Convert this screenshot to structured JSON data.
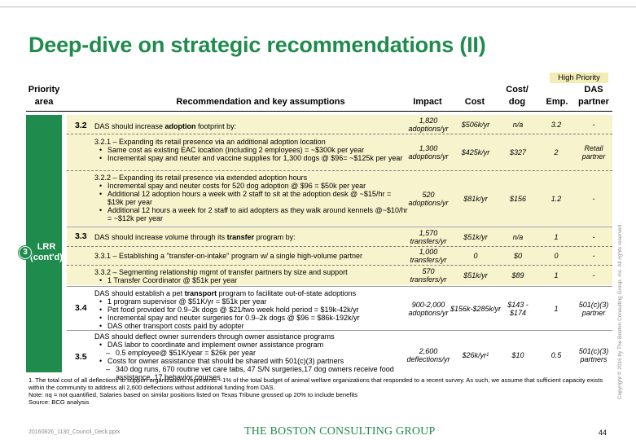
{
  "slide": {
    "title": "Deep-dive on strategic recommendations (II)",
    "high_priority_label": "High Priority",
    "page_number": "44",
    "file_name": "20160826_1130_Council_Deck.pptx",
    "logo": "THE BOSTON CONSULTING GROUP",
    "copyright": "Copyright © 2016 by The Boston Consulting Group, Inc. All rights reserved."
  },
  "headers": {
    "priority_area": "Priority area",
    "recommendation": "Recommendation and key assumptions",
    "impact": "Impact",
    "cost": "Cost",
    "cost_dog": "Cost/ dog",
    "emp": "Emp.",
    "das_partner": "DAS partner"
  },
  "priority_area": {
    "badge": "3",
    "label_line1": "LRR",
    "label_line2": "(cont'd)"
  },
  "rows": {
    "r32": {
      "num": "3.2",
      "text_pre": "DAS should increase ",
      "text_kw": "adoption",
      "text_post": " footprint by:",
      "impact": "1,820 adoptions/yr",
      "cost": "$506k/yr",
      "cost_dog": "n/a",
      "emp": "3.2",
      "partner": "-"
    },
    "r321": {
      "title": "3.2.1 – Expanding its retail presence via an additional adoption location",
      "bullets": [
        "Same cost as existing EAC location (including 2 employees) = ~$300k per year",
        "Incremental spay and neuter and vaccine supplies for 1,300 dogs @ $96= ~$125k per year"
      ],
      "impact": "1,300 adoptions/yr",
      "cost": "$425k/yr",
      "cost_dog": "$327",
      "emp": "2",
      "partner": "Retail partner"
    },
    "r322": {
      "title": "3.2.2 – Expanding its retail presence via extended adoption hours",
      "bullets": [
        "Incremental spay and neuter costs for 520 dog adoption @ $96 = $50k per year",
        "Additional 12 adoption hours a week with 2 staff to sit at the adoption desk @ ~$15/hr = $19k per year",
        "Additional 12 hours a week for 2 staff to aid adopters as they walk around kennels @~$10/hr = ~$12k per year"
      ],
      "impact": "520 adoptions/yr",
      "cost": "$81k/yr",
      "cost_dog": "$156",
      "emp": "1.2",
      "partner": "-"
    },
    "r33": {
      "num": "3.3",
      "text_pre": "DAS should increase volume through its ",
      "text_kw": "transfer",
      "text_post": " program by:",
      "impact": "1,570 transfers/yr",
      "cost": "$51k/yr",
      "cost_dog": "n/a",
      "emp": "1",
      "partner": "-"
    },
    "r331": {
      "title": "3.3.1 – Establishing a \"transfer-on-intake\" program w/ a single high-volume partner",
      "impact": "1,000 transfers/yr",
      "cost": "0",
      "cost_dog": "$0",
      "emp": "0",
      "partner": "-"
    },
    "r332": {
      "title": "3.3.2 – Segmenting relationship mgmt of transfer partners by size and support",
      "bullets": [
        "1 Transfer Coordinator @ $51k per year"
      ],
      "impact": "570 transfers/yr",
      "cost": "$51k/yr",
      "cost_dog": "$89",
      "emp": "1",
      "partner": "-"
    },
    "r34": {
      "num": "3.4",
      "text_pre": "DAS should establish a pet ",
      "text_kw": "transport",
      "text_post": " program to facilitate out-of-state adoptions",
      "bullets": [
        "1 program supervisor @ $51K/yr = $51k per year",
        "Pet food provided for 0.9–2k dogs @ $21/two week hold period = $19k-42k/yr",
        "Incremental spay and neuter surgeries for 0.9–2k dogs @ $96 = $86k-192k/yr",
        "DAS other transport costs paid by adopter"
      ],
      "impact": "900-2,000 adoptions/yr",
      "cost": "$156k-$285k/yr",
      "cost_dog": "$143 - $174",
      "emp": "1",
      "partner": "501(c)(3) partner"
    },
    "r35": {
      "num": "3.5",
      "text": "DAS should deflect owner surrenders through owner assistance programs",
      "bullet1": "DAS labor to coordinate and implement owner assistance program",
      "sub1": "0.5 employee@ $51K/year = $26k per year",
      "bullet2": "Costs for owner assistance that should be shared with 501(c)(3) partners",
      "sub2": "340 dog runs, 670 routine vet care tabs, 47 S/N surgeries,17 dog owners receive food assistance, 17 behavior courses",
      "impact": "2,600 deflections/yr",
      "cost": "$26k/yr",
      "cost_sup": "1",
      "cost_dog": "$10",
      "emp": "0.5",
      "partner": "501(c)(3) partners"
    }
  },
  "notes": {
    "n1": "1. The total cost of all deflections to support organizations represents ~1% of the total budget of animal welfare organizations that responded to a recent survey. As such, we assume that sufficient capacity exists within the community to address all 2,600 deflections without additional funding from DAS.",
    "n2": "Note: nq = not quantified, Salaries based on similar positions listed on Texas Tribune grossed up 20% to include benefits",
    "n3": "Source: BCG analysis"
  }
}
